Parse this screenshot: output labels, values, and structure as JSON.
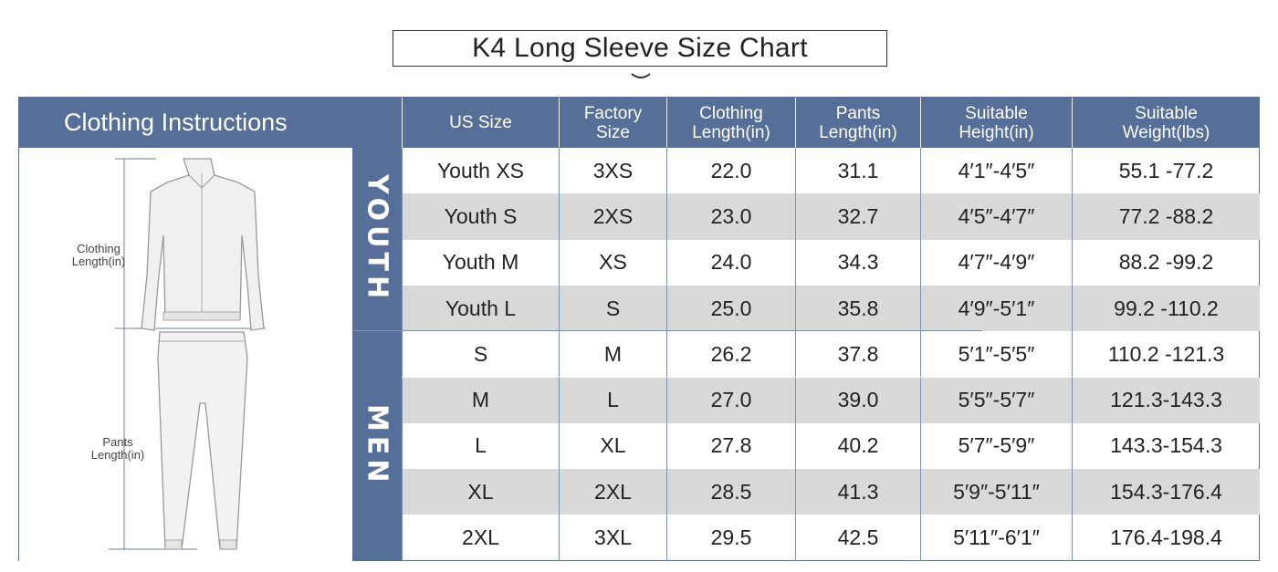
{
  "title": "K4 Long Sleeve Size Chart",
  "header": {
    "instructions": "Clothing Instructions",
    "columns": [
      {
        "line1": "US Size",
        "line2": ""
      },
      {
        "line1": "Factory",
        "line2": "Size"
      },
      {
        "line1": "Clothing",
        "line2": "Length(in)"
      },
      {
        "line1": "Pants",
        "line2": "Length(in)"
      },
      {
        "line1": "Suitable",
        "line2": "Height(in)"
      },
      {
        "line1": "Suitable",
        "line2": "Weight(lbs)"
      }
    ]
  },
  "illustration": {
    "clothing_label_1": "Clothing",
    "clothing_label_2": "Length(in)",
    "pants_label_1": "Pants",
    "pants_label_2": "Length(in)"
  },
  "groups": {
    "youth": "YOUTH",
    "men": "MEN"
  },
  "rows": [
    {
      "us": "Youth XS",
      "factory": "3XS",
      "clothing": "22.0",
      "pants": "31.1",
      "height": "4′1″-4′5″",
      "weight": "55.1 -77.2"
    },
    {
      "us": "Youth S",
      "factory": "2XS",
      "clothing": "23.0",
      "pants": "32.7",
      "height": "4′5″-4′7″",
      "weight": "77.2 -88.2"
    },
    {
      "us": "Youth M",
      "factory": "XS",
      "clothing": "24.0",
      "pants": "34.3",
      "height": "4′7″-4′9″",
      "weight": "88.2 -99.2"
    },
    {
      "us": "Youth L",
      "factory": "S",
      "clothing": "25.0",
      "pants": "35.8",
      "height": "4′9″-5′1″",
      "weight": "99.2 -110.2"
    },
    {
      "us": "S",
      "factory": "M",
      "clothing": "26.2",
      "pants": "37.8",
      "height": "5′1″-5′5″",
      "weight": "110.2 -121.3"
    },
    {
      "us": "M",
      "factory": "L",
      "clothing": "27.0",
      "pants": "39.0",
      "height": "5′5″-5′7″",
      "weight": "121.3-143.3"
    },
    {
      "us": "L",
      "factory": "XL",
      "clothing": "27.8",
      "pants": "40.2",
      "height": "5′7″-5′9″",
      "weight": "143.3-154.3"
    },
    {
      "us": "XL",
      "factory": "2XL",
      "clothing": "28.5",
      "pants": "41.3",
      "height": "5′9″-5′11″",
      "weight": "154.3-176.4"
    },
    {
      "us": "2XL",
      "factory": "3XL",
      "clothing": "29.5",
      "pants": "42.5",
      "height": "5′11″-6′1″",
      "weight": "176.4-198.4"
    }
  ],
  "colors": {
    "header_bg": "#566f98",
    "alt_row_bg": "#d9d9d9"
  }
}
